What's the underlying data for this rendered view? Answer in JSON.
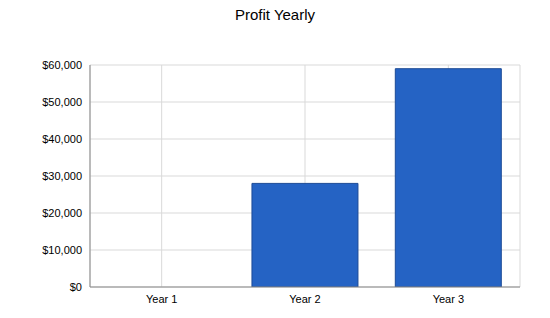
{
  "chart_data": {
    "type": "bar",
    "title": "Profit Yearly",
    "categories": [
      "Year 1",
      "Year 2",
      "Year 3"
    ],
    "values": [
      0,
      28000,
      59000
    ],
    "color": "#2563c4",
    "ylim": [
      0,
      60000
    ],
    "yticks": [
      {
        "value": 0,
        "label": "$0"
      },
      {
        "value": 10000,
        "label": "$10,000"
      },
      {
        "value": 20000,
        "label": "$20,000"
      },
      {
        "value": 30000,
        "label": "$30,000"
      },
      {
        "value": 40000,
        "label": "$40,000"
      },
      {
        "value": 50000,
        "label": "$50,000"
      },
      {
        "value": 60000,
        "label": "$60,000"
      }
    ],
    "grid": true
  }
}
